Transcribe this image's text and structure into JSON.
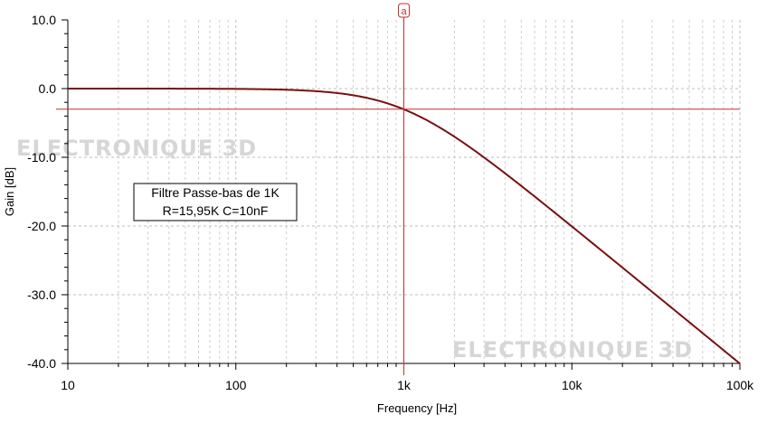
{
  "chart_data": {
    "type": "line",
    "xlabel": "Frequency [Hz]",
    "ylabel": "Gain [dB]",
    "xscale": "log",
    "xlim": [
      10,
      100000
    ],
    "ylim": [
      -40,
      10
    ],
    "x_ticks": [
      {
        "value": 10,
        "label": "10"
      },
      {
        "value": 100,
        "label": "100"
      },
      {
        "value": 1000,
        "label": "1k"
      },
      {
        "value": 10000,
        "label": "10k"
      },
      {
        "value": 100000,
        "label": "100k"
      }
    ],
    "y_ticks": [
      {
        "value": 10,
        "label": "10.0"
      },
      {
        "value": 0,
        "label": "0.0"
      },
      {
        "value": -10,
        "label": "-10.0"
      },
      {
        "value": -20,
        "label": "-20.0"
      },
      {
        "value": -30,
        "label": "-30.0"
      },
      {
        "value": -40,
        "label": "-40.0"
      }
    ],
    "grid": true,
    "series": [
      {
        "color": "#7a1010",
        "cutoff_hz": 998,
        "x": [
          10,
          20,
          50,
          100,
          200,
          300,
          500,
          700,
          1000,
          2000,
          5000,
          10000,
          20000,
          50000,
          100000
        ],
        "y": [
          0.0,
          -0.002,
          -0.01,
          -0.04,
          -0.17,
          -0.37,
          -0.97,
          -1.68,
          -3.02,
          -6.98,
          -14.2,
          -20.0,
          -26.0,
          -34.0,
          -40.0
        ]
      }
    ],
    "cursor": {
      "label": "a",
      "x": 1000,
      "y": -3.0,
      "color": "#c03030"
    },
    "annotations": [
      {
        "lines": [
          "Filtre Passe-bas de 1K",
          "R=15,95K C=10nF"
        ]
      }
    ],
    "watermarks": [
      "ELECTRONIQUE 3D",
      "ELECTRONIQUE 3D"
    ]
  }
}
